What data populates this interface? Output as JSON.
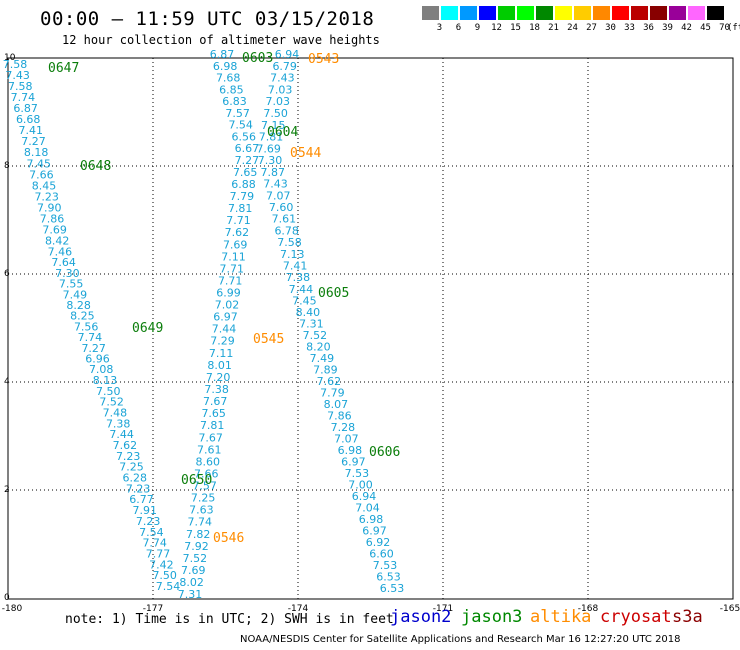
{
  "header": {
    "title": "00:00 – 11:59 UTC 03/15/2018",
    "subtitle": "12 hour collection of altimeter wave heights"
  },
  "colorbar": {
    "labels": [
      "3",
      "6",
      "9",
      "12",
      "15",
      "18",
      "21",
      "24",
      "27",
      "30",
      "33",
      "36",
      "39",
      "42",
      "45",
      "70"
    ],
    "unit": "(ft)",
    "colors": [
      "#7f7f7f",
      "#00ffff",
      "#0099ff",
      "#0000ff",
      "#00cc00",
      "#00ff00",
      "#008800",
      "#ffff00",
      "#ffcc00",
      "#ff8800",
      "#ff0000",
      "#bb0000",
      "#880000",
      "#990099",
      "#ff66ff",
      "#000000"
    ]
  },
  "axes": {
    "x_ticks": [
      "-180",
      "-177",
      "-174",
      "-171",
      "-168",
      "-165"
    ],
    "y_ticks": [
      "10",
      "8",
      "6",
      "4",
      "2",
      "0"
    ]
  },
  "pass_labels": {
    "jason3": [
      "0647",
      "0648",
      "0649",
      "0650",
      "0603",
      "0604",
      "0605",
      "0606"
    ],
    "altika": [
      "0543",
      "0544",
      "0545",
      "0546"
    ]
  },
  "tracks": [
    {
      "values": [
        "7.58",
        "7.43",
        "7.58",
        "7.74",
        "6.87",
        "6.68",
        "7.41",
        "7.27",
        "8.18",
        "7.45",
        "7.66",
        "8.45",
        "7.23",
        "7.90",
        "7.86",
        "7.69",
        "8.42",
        "7.46",
        "7.64",
        "7.30",
        "7.55",
        "7.49",
        "8.28",
        "8.25",
        "7.56",
        "7.74",
        "7.27",
        "6.96",
        "7.08",
        "8.13",
        "7.50",
        "7.52",
        "7.48",
        "7.38",
        "7.44",
        "7.62",
        "7.23",
        "7.25",
        "6.28",
        "7.23",
        "6.77",
        "7.91",
        "7.23",
        "7.54",
        "7.74",
        "7.77",
        "7.42",
        "7.50",
        "7.54"
      ]
    },
    {
      "values": [
        "7.31",
        "8.02",
        "7.69",
        "7.52",
        "7.92",
        "7.82",
        "7.74",
        "7.63",
        "7.25",
        "7.57",
        "7.66",
        "8.60",
        "7.61",
        "7.67",
        "7.81",
        "7.65",
        "7.67",
        "7.38",
        "7.20",
        "8.01",
        "7.11",
        "7.29",
        "7.44",
        "6.97",
        "7.02",
        "6.99",
        "7.71",
        "7.71",
        "7.11",
        "7.69",
        "7.62",
        "7.71",
        "7.81",
        "7.79",
        "6.88",
        "7.65",
        "7.27",
        "6.67",
        "6.56",
        "7.54",
        "7.57",
        "6.83",
        "6.85",
        "7.68",
        "6.98",
        "6.87"
      ]
    },
    {
      "values": [
        "6.94",
        "6.79",
        "7.43",
        "7.03",
        "7.03",
        "7.50",
        "7.15",
        "7.81",
        "7.69",
        "7.30",
        "7.87",
        "7.43",
        "7.07",
        "7.60",
        "7.61",
        "6.78",
        "7.58",
        "7.13",
        "7.41",
        "7.38",
        "7.44",
        "7.45",
        "8.40",
        "7.31",
        "7.52",
        "8.20",
        "7.49",
        "7.89",
        "7.62",
        "7.79",
        "8.07",
        "7.86",
        "7.28",
        "7.07",
        "6.98",
        "6.97",
        "7.53",
        "7.00",
        "6.94",
        "7.04",
        "6.98",
        "6.97",
        "6.92",
        "6.60",
        "7.53",
        "6.53",
        "6.53"
      ]
    }
  ],
  "note": "note:  1) Time is in UTC; 2) SWH is in feet",
  "legend": {
    "jason2": {
      "text": "jason2",
      "color": "#0000cc"
    },
    "jason3": {
      "text": "jason3",
      "color": "#008800"
    },
    "altika": {
      "text": "altika",
      "color": "#ff8c00"
    },
    "cryosat": {
      "text": "cryosat",
      "color": "#cc0000"
    },
    "s3a": {
      "text": "s3a",
      "color": "#8b0000"
    }
  },
  "credit": "NOAA/NESDIS Center for Satellite Applications and Research    Mar 16 12:27:20 UTC 2018"
}
